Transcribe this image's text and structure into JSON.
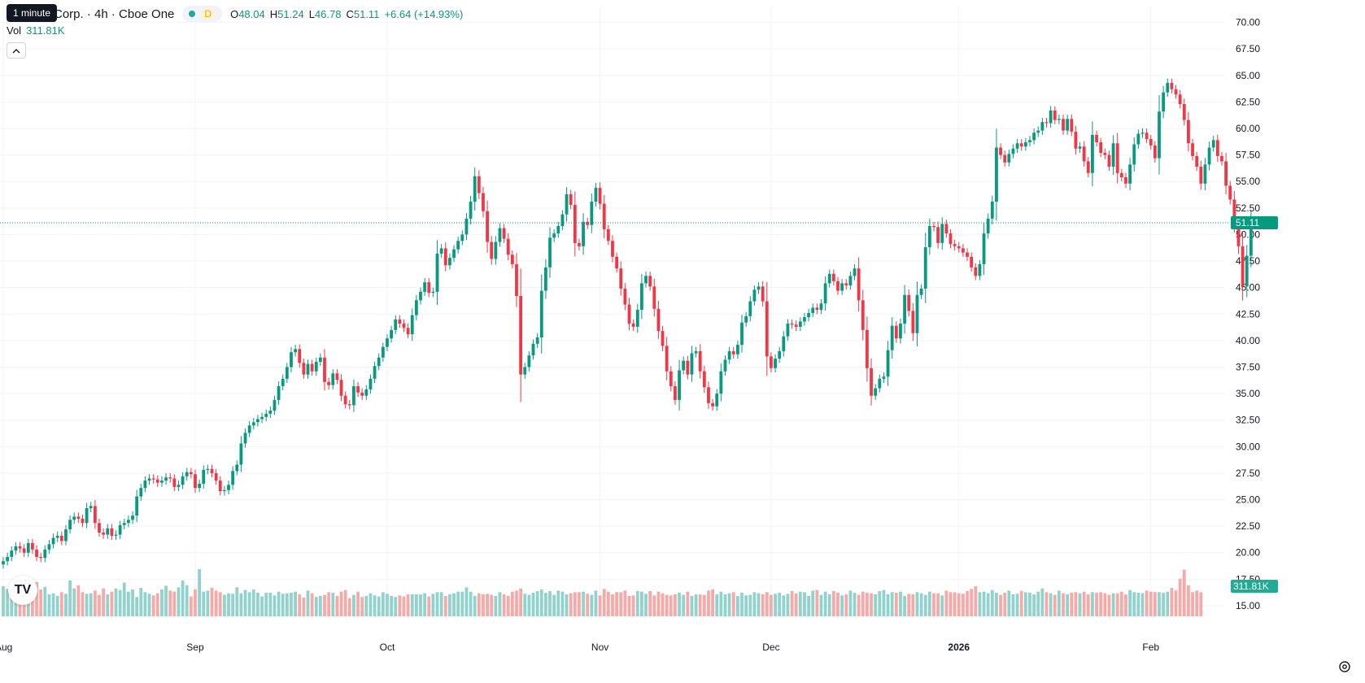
{
  "legend": {
    "title": "Corp. · 4h · Cboe One",
    "tooltip": "1 minute",
    "status_badge": "D",
    "o_label": "O",
    "o_value": "48.04",
    "h_label": "H",
    "h_value": "51.24",
    "l_label": "L",
    "l_value": "46.78",
    "c_label": "C",
    "c_value": "51.11",
    "change": "+6.64 (+14.93%)",
    "vol_label": "Vol",
    "vol_value": "311.81K",
    "collapse_icon": "chevron-up-icon"
  },
  "logo_text": "TV",
  "colors": {
    "up": "#089981",
    "down": "#f23645",
    "up_volume": "#92d2cc",
    "down_volume": "#f7a9a7",
    "grid": "#f0f3fa",
    "text": "#131722"
  },
  "chart_data": {
    "type": "candlestick",
    "y_ticks": [
      "70.00",
      "67.50",
      "65.00",
      "62.50",
      "60.00",
      "57.50",
      "55.00",
      "52.50",
      "50.00",
      "47.50",
      "45.00",
      "42.50",
      "40.00",
      "37.50",
      "35.00",
      "32.50",
      "30.00",
      "27.50",
      "25.00",
      "22.50",
      "20.00",
      "17.50",
      "15.00"
    ],
    "ylim": [
      14.0,
      71.5
    ],
    "x_ticks": [
      {
        "label": "Aug",
        "bar": 0
      },
      {
        "label": "Sep",
        "bar": 46
      },
      {
        "label": "Oct",
        "bar": 92
      },
      {
        "label": "Nov",
        "bar": 143
      },
      {
        "label": "Dec",
        "bar": 184
      },
      {
        "label": "2026",
        "bar": 229,
        "bold": true
      },
      {
        "label": "Feb",
        "bar": 275
      }
    ],
    "last_price_label": "51.11",
    "last_price": 51.11,
    "last_volume_label": "311.81K",
    "volume_scale_max": 30,
    "closes": [
      19.2,
      19.6,
      20.2,
      20.6,
      20.4,
      20.0,
      20.9,
      20.3,
      19.6,
      19.5,
      20.3,
      20.8,
      21.4,
      21.6,
      21.1,
      22.2,
      23.1,
      23.4,
      23.2,
      22.8,
      24.2,
      24.4,
      22.8,
      21.9,
      21.7,
      22.3,
      21.6,
      21.7,
      22.6,
      22.8,
      23.1,
      23.5,
      25.3,
      26.1,
      26.8,
      27.0,
      26.9,
      26.6,
      26.8,
      27.1,
      27.0,
      26.2,
      26.4,
      27.2,
      27.6,
      27.4,
      26.1,
      26.5,
      27.8,
      27.9,
      27.5,
      26.8,
      25.8,
      25.9,
      26.4,
      27.7,
      28.3,
      30.3,
      31.3,
      32.0,
      32.3,
      32.6,
      32.8,
      33.1,
      33.4,
      34.4,
      35.7,
      36.4,
      37.5,
      38.9,
      39.2,
      37.9,
      36.8,
      37.8,
      37.1,
      38.0,
      38.4,
      36.1,
      35.8,
      36.9,
      36.3,
      34.8,
      34.0,
      33.9,
      35.7,
      35.1,
      34.8,
      35.4,
      36.4,
      37.6,
      38.4,
      39.4,
      40.2,
      41.0,
      42.0,
      41.6,
      41.2,
      40.6,
      42.4,
      43.8,
      44.6,
      45.5,
      44.5,
      44.6,
      48.2,
      48.7,
      47.1,
      47.8,
      48.6,
      49.4,
      50.0,
      51.5,
      53.1,
      55.5,
      53.9,
      52.2,
      49.3,
      47.7,
      49.3,
      50.6,
      49.6,
      48.1,
      47.2,
      44.2,
      36.8,
      37.5,
      38.6,
      39.7,
      40.3,
      44.7,
      46.9,
      49.7,
      50.1,
      50.8,
      51.9,
      53.8,
      52.8,
      49.2,
      48.9,
      51.2,
      50.9,
      53.1,
      54.4,
      52.9,
      50.5,
      49.4,
      47.9,
      46.8,
      44.9,
      43.4,
      41.6,
      41.3,
      42.9,
      45.4,
      46.1,
      45.1,
      43.0,
      40.9,
      39.5,
      37.1,
      35.7,
      34.4,
      37.2,
      38.1,
      36.8,
      38.8,
      39.0,
      37.1,
      35.6,
      34.1,
      33.8,
      35.0,
      37.1,
      38.2,
      39.0,
      38.7,
      39.6,
      41.7,
      42.3,
      43.7,
      44.8,
      45.1,
      43.7,
      38.5,
      37.4,
      38.3,
      39.0,
      40.4,
      41.6,
      41.5,
      41.3,
      41.8,
      42.2,
      42.6,
      43.1,
      42.9,
      43.5,
      45.4,
      46.3,
      45.6,
      44.7,
      45.4,
      45.2,
      46.1,
      46.8,
      43.8,
      41.0,
      37.4,
      34.8,
      35.5,
      36.4,
      36.6,
      39.1,
      41.4,
      40.2,
      41.6,
      44.3,
      42.8,
      40.7,
      44.3,
      44.9,
      48.8,
      50.8,
      50.7,
      49.2,
      51.0,
      50.1,
      49.1,
      48.9,
      48.7,
      48.3,
      47.9,
      46.9,
      46.1,
      47.2,
      50.1,
      51.5,
      53.1,
      58.2,
      57.5,
      56.8,
      57.6,
      58.1,
      58.6,
      58.3,
      58.7,
      58.9,
      59.6,
      59.8,
      60.6,
      60.5,
      61.7,
      60.8,
      60.9,
      59.8,
      60.9,
      59.7,
      58.1,
      58.3,
      56.9,
      55.8,
      59.4,
      58.7,
      57.7,
      57.5,
      56.4,
      58.6,
      55.8,
      55.4,
      54.8,
      56.6,
      58.5,
      59.5,
      59.6,
      59.0,
      58.4,
      57.2,
      61.6,
      63.4,
      64.3,
      63.7,
      63.2,
      62.3,
      60.8,
      58.6,
      57.4,
      56.4,
      54.8,
      56.6,
      58.2,
      58.9,
      57.4,
      56.9,
      54.6,
      53.3,
      51.0,
      48.9,
      45.1,
      48.0,
      51.11
    ],
    "volumes": [
      5.6,
      5.1,
      6.0,
      4.8,
      4.1,
      4.6,
      4.2,
      4.7,
      6.4,
      5.0,
      5.5,
      4.1,
      4.3,
      3.8,
      4.5,
      4.2,
      6.7,
      5.2,
      5.8,
      4.5,
      4.2,
      4.3,
      4.8,
      4.0,
      5.2,
      4.1,
      4.6,
      5.2,
      4.9,
      6.3,
      4.6,
      5.0,
      3.6,
      5.3,
      4.5,
      4.2,
      3.9,
      4.3,
      5.0,
      5.7,
      4.8,
      4.6,
      5.4,
      6.7,
      5.8,
      3.7,
      5.0,
      8.8,
      4.6,
      4.8,
      5.3,
      4.8,
      4.5,
      4.0,
      4.3,
      4.2,
      5.4,
      4.3,
      4.9,
      4.5,
      5.0,
      4.4,
      3.7,
      4.4,
      4.4,
      3.9,
      4.6,
      4.2,
      4.3,
      4.4,
      4.6,
      4.1,
      3.5,
      4.8,
      4.3,
      3.6,
      3.8,
      4.0,
      4.5,
      4.4,
      3.8,
      4.6,
      4.9,
      3.4,
      4.0,
      4.6,
      3.6,
      3.8,
      4.3,
      3.9,
      3.7,
      4.5,
      4.2,
      3.8,
      3.6,
      3.9,
      3.7,
      4.1,
      4.1,
      4.1,
      4.1,
      4.3,
      3.7,
      4.2,
      4.5,
      4.5,
      3.8,
      4.1,
      4.3,
      4.6,
      4.6,
      5.4,
      4.6,
      3.8,
      4.3,
      4.1,
      4.2,
      4.0,
      3.8,
      4.5,
      4.1,
      3.8,
      4.6,
      4.8,
      5.2,
      4.2,
      4.0,
      4.4,
      4.7,
      5.0,
      4.4,
      4.7,
      4.0,
      4.8,
      4.6,
      4.1,
      4.3,
      4.5,
      4.5,
      4.6,
      4.2,
      4.0,
      4.8,
      3.9,
      5.1,
      4.6,
      4.1,
      4.5,
      4.5,
      4.8,
      3.8,
      3.9,
      4.7,
      4.6,
      4.2,
      4.7,
      3.9,
      4.6,
      4.3,
      4.0,
      3.9,
      4.1,
      4.4,
      4.0,
      4.6,
      3.8,
      4.1,
      4.1,
      4.0,
      4.8,
      5.0,
      4.1,
      4.6,
      4.1,
      4.3,
      4.5,
      3.8,
      4.4,
      3.9,
      4.0,
      4.5,
      4.3,
      4.1,
      4.5,
      4.0,
      4.2,
      4.4,
      3.9,
      4.2,
      4.7,
      4.3,
      4.6,
      4.5,
      3.8,
      4.8,
      4.9,
      4.0,
      4.6,
      4.1,
      4.7,
      4.4,
      3.9,
      4.1,
      4.8,
      4.4,
      4.0,
      4.6,
      4.4,
      4.3,
      4.1,
      4.7,
      4.9,
      4.1,
      4.5,
      4.4,
      4.6,
      3.8,
      4.2,
      4.1,
      4.5,
      4.3,
      4.0,
      4.6,
      4.3,
      4.3,
      3.9,
      4.8,
      4.5,
      4.5,
      4.3,
      4.2,
      4.7,
      5.1,
      5.6,
      4.5,
      4.6,
      4.3,
      4.9,
      4.4,
      4.0,
      4.4,
      4.8,
      4.1,
      4.2,
      4.7,
      4.5,
      4.4,
      4.1,
      4.6,
      5.2,
      4.5,
      4.3,
      4.0,
      4.8,
      4.3,
      4.1,
      4.4,
      4.5,
      4.3,
      4.6,
      4.1,
      4.5,
      4.4,
      4.5,
      4.3,
      4.0,
      4.3,
      4.3,
      4.6,
      4.1,
      4.9,
      4.5,
      4.4,
      4.3,
      4.8,
      4.6,
      4.5,
      4.5,
      4.4,
      4.6,
      5.3,
      4.8,
      7.0,
      8.7,
      5.8,
      4.5,
      4.8,
      4.5
    ]
  }
}
